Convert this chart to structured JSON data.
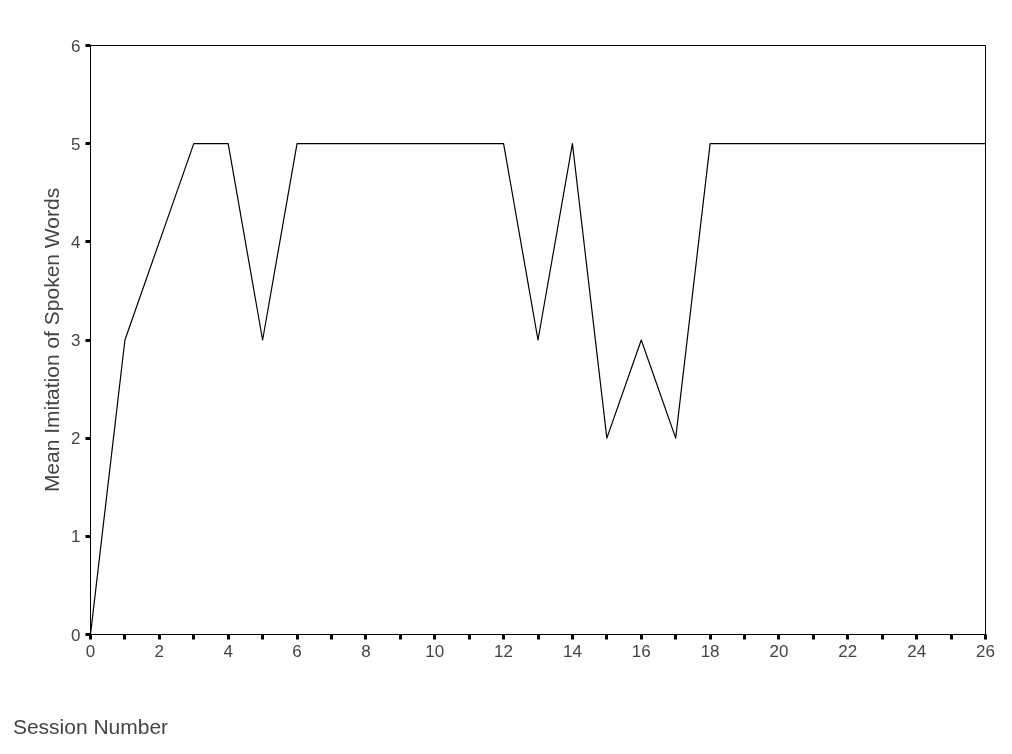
{
  "chart_data": {
    "type": "line",
    "xlabel": "Session Number",
    "ylabel": "Mean Imitation of Spoken Words",
    "x": [
      0,
      1,
      2,
      3,
      4,
      5,
      6,
      7,
      8,
      9,
      10,
      11,
      12,
      13,
      14,
      15,
      16,
      17,
      18,
      19,
      20,
      21,
      22,
      23,
      24,
      25,
      26
    ],
    "series": [
      {
        "color": "#000000",
        "values": [
          0,
          3,
          4,
          5,
          5,
          3,
          5,
          5,
          5,
          5,
          5,
          5,
          5,
          3,
          5,
          2,
          3,
          2,
          5,
          5,
          5,
          5,
          5,
          5,
          5,
          5,
          5
        ]
      }
    ],
    "xlim": [
      0,
      26
    ],
    "ylim": [
      0,
      6
    ],
    "xticks": [
      0,
      2,
      4,
      6,
      8,
      10,
      12,
      14,
      16,
      18,
      20,
      22,
      24,
      26
    ],
    "yticks": [
      0,
      1,
      2,
      3,
      4,
      5,
      6
    ],
    "grid": false,
    "marker": "none",
    "line_style": "solid"
  }
}
